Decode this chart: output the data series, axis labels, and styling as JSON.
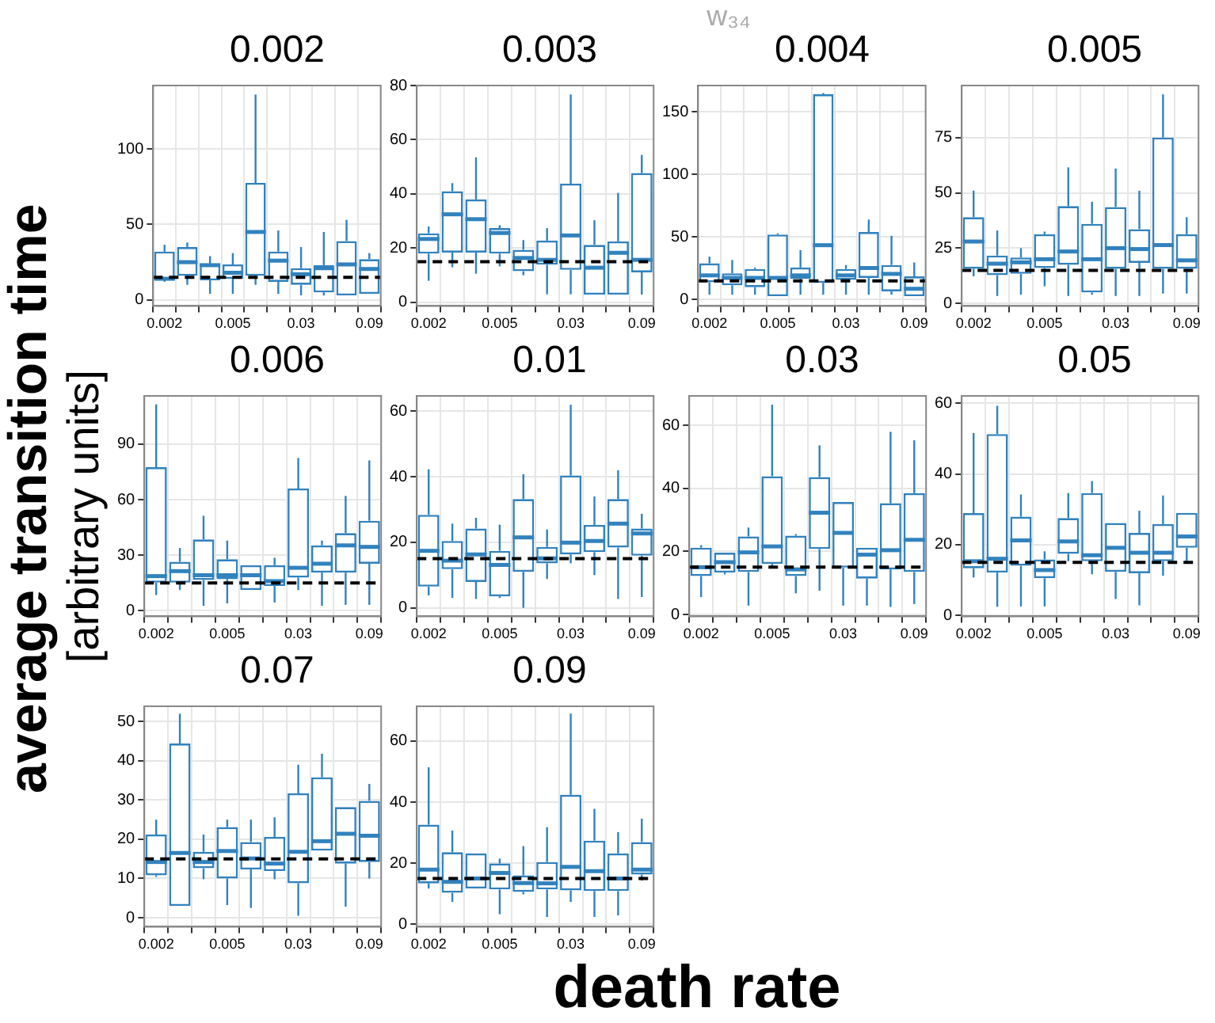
{
  "chart_data": [
    {
      "type": "box",
      "title": "0.002",
      "xlabel": "death rate",
      "ylabel": "average transition time\n[arbitrary units]",
      "annotations": [
        "w₃₄"
      ],
      "categories": [
        "0.002",
        null,
        null,
        "0.005",
        null,
        null,
        "0.03",
        null,
        null,
        "0.09"
      ],
      "color": "#3182bd",
      "ylim": [
        -4,
        142
      ],
      "yticks": [
        0,
        50,
        100
      ],
      "grid": true,
      "ref_lines": [
        {
          "axis": "y",
          "value": 15,
          "color": "#000000",
          "line_style": "dashed"
        }
      ],
      "boxes": [
        {
          "low": 12,
          "q1": 13,
          "median": 14,
          "q3": 32,
          "high": 36.5
        },
        {
          "low": 10,
          "q1": 16,
          "median": 25,
          "q3": 35,
          "high": 38
        },
        {
          "low": 4,
          "q1": 13,
          "median": 23,
          "q3": 24,
          "high": 29
        },
        {
          "low": 4,
          "q1": 14,
          "median": 18,
          "q3": 23.5,
          "high": 31
        },
        {
          "low": 10,
          "q1": 16,
          "median": 45,
          "q3": 77.5,
          "high": 136
        },
        {
          "low": 4,
          "q1": 12,
          "median": 26,
          "q3": 32,
          "high": 46
        },
        {
          "low": 3,
          "q1": 10,
          "median": 17,
          "q3": 21,
          "high": 35
        },
        {
          "low": 3,
          "q1": 5,
          "median": 21,
          "q3": 23,
          "high": 45
        },
        {
          "low": 3,
          "q1": 3,
          "median": 23.5,
          "q3": 39,
          "high": 53
        },
        {
          "low": 4,
          "q1": 4,
          "median": 20.5,
          "q3": 27,
          "high": 31
        }
      ]
    },
    {
      "type": "box",
      "title": "0.003",
      "categories": [
        "0.002",
        null,
        null,
        "0.005",
        null,
        null,
        "0.03",
        null,
        null,
        "0.09"
      ],
      "color": "#3182bd",
      "ylim": [
        -1.3,
        80
      ],
      "yticks": [
        0,
        20,
        40,
        60,
        80
      ],
      "grid": true,
      "ref_lines": [
        {
          "axis": "y",
          "value": 15,
          "color": "#000000",
          "line_style": "dashed"
        }
      ],
      "boxes": [
        {
          "low": 8,
          "q1": 18,
          "median": 23.4,
          "q3": 25.5,
          "high": 28
        },
        {
          "low": 13,
          "q1": 18.4,
          "median": 32.5,
          "q3": 41,
          "high": 44
        },
        {
          "low": 10.6,
          "q1": 18.4,
          "median": 30.7,
          "q3": 38,
          "high": 53.5
        },
        {
          "low": 13.3,
          "q1": 18,
          "median": 25.6,
          "q3": 27.4,
          "high": 28.5
        },
        {
          "low": 10,
          "q1": 11.5,
          "median": 16.4,
          "q3": 19.4,
          "high": 23
        },
        {
          "low": 3,
          "q1": 13.9,
          "median": 15.7,
          "q3": 22.8,
          "high": 27.4
        },
        {
          "low": 3,
          "q1": 12,
          "median": 24.7,
          "q3": 43.8,
          "high": 76.7
        },
        {
          "low": 2.9,
          "q1": 2.9,
          "median": 12.8,
          "q3": 21.2,
          "high": 30.3
        },
        {
          "low": 2.9,
          "q1": 2.9,
          "median": 18.3,
          "q3": 22.5,
          "high": 40.4
        },
        {
          "low": 2.9,
          "q1": 11.1,
          "median": 15.7,
          "q3": 47.7,
          "high": 54.4
        }
      ]
    },
    {
      "type": "box",
      "title": "0.004",
      "categories": [
        "0.002",
        null,
        null,
        "0.005",
        null,
        null,
        "0.03",
        null,
        null,
        "0.09"
      ],
      "color": "#3182bd",
      "ylim": [
        -5,
        171
      ],
      "yticks": [
        0,
        50,
        100,
        150
      ],
      "grid": true,
      "ref_lines": [
        {
          "axis": "y",
          "value": 15,
          "color": "#000000",
          "line_style": "dashed"
        }
      ],
      "boxes": [
        {
          "low": 4,
          "q1": 13.9,
          "median": 19.4,
          "q3": 29,
          "high": 34.4
        },
        {
          "low": 4,
          "q1": 11.5,
          "median": 17.4,
          "q3": 21,
          "high": 31.7
        },
        {
          "low": 4,
          "q1": 10,
          "median": 17.4,
          "q3": 24.5,
          "high": 25.7
        },
        {
          "low": 2.8,
          "q1": 2.8,
          "median": 17.4,
          "q3": 52,
          "high": 53
        },
        {
          "low": 4,
          "q1": 16.6,
          "median": 19.4,
          "q3": 25.7,
          "high": 39.6
        },
        {
          "low": 4,
          "q1": 13.5,
          "median": 43.5,
          "q3": 164,
          "high": 165
        },
        {
          "low": 4,
          "q1": 15.8,
          "median": 19.4,
          "q3": 24.5,
          "high": 27.7
        },
        {
          "low": 4,
          "q1": 17.4,
          "median": 25.3,
          "q3": 54,
          "high": 64
        },
        {
          "low": 4,
          "q1": 6.7,
          "median": 20.6,
          "q3": 27.7,
          "high": 51
        },
        {
          "low": 2.8,
          "q1": 2.8,
          "median": 8.7,
          "q3": 18.6,
          "high": 29.7
        }
      ]
    },
    {
      "type": "box",
      "title": "0.005",
      "categories": [
        "0.002",
        null,
        null,
        "0.005",
        null,
        null,
        "0.03",
        null,
        null,
        "0.09"
      ],
      "color": "#3182bd",
      "ylim": [
        -1.1,
        98.5
      ],
      "yticks": [
        0,
        25,
        50,
        75
      ],
      "grid": true,
      "ref_lines": [
        {
          "axis": "y",
          "value": 15,
          "color": "#000000",
          "line_style": "dashed"
        }
      ],
      "boxes": [
        {
          "low": 12.3,
          "q1": 15.7,
          "median": 28,
          "q3": 39,
          "high": 51
        },
        {
          "low": 3.4,
          "q1": 12.8,
          "median": 18,
          "q3": 21.7,
          "high": 33
        },
        {
          "low": 4,
          "q1": 13.4,
          "median": 18.6,
          "q3": 20.8,
          "high": 25
        },
        {
          "low": 7.8,
          "q1": 16,
          "median": 20,
          "q3": 31.3,
          "high": 32.5
        },
        {
          "low": 3.4,
          "q1": 17.5,
          "median": 23.5,
          "q3": 44,
          "high": 61.5
        },
        {
          "low": 4,
          "q1": 5,
          "median": 20,
          "q3": 36,
          "high": 46
        },
        {
          "low": 3.4,
          "q1": 15.7,
          "median": 25,
          "q3": 43.6,
          "high": 61
        },
        {
          "low": 3.4,
          "q1": 18.4,
          "median": 24.6,
          "q3": 33.6,
          "high": 51
        },
        {
          "low": 4.5,
          "q1": 15.7,
          "median": 26.4,
          "q3": 75,
          "high": 94.5
        },
        {
          "low": 4.5,
          "q1": 15.7,
          "median": 19.5,
          "q3": 31.3,
          "high": 39
        }
      ]
    },
    {
      "type": "box",
      "title": "0.006",
      "categories": [
        "0.002",
        null,
        null,
        "0.005",
        null,
        null,
        "0.03",
        null,
        null,
        "0.09"
      ],
      "color": "#3182bd",
      "ylim": [
        -3,
        116
      ],
      "yticks": [
        0,
        30,
        60,
        90
      ],
      "grid": true,
      "ref_lines": [
        {
          "axis": "y",
          "value": 15,
          "color": "#000000",
          "line_style": "dashed"
        }
      ],
      "boxes": [
        {
          "low": 8.5,
          "q1": 15.2,
          "median": 18.7,
          "q3": 77.5,
          "high": 111.4
        },
        {
          "low": 11.2,
          "q1": 15.2,
          "median": 21.4,
          "q3": 26.4,
          "high": 33.9
        },
        {
          "low": 2.7,
          "q1": 16.6,
          "median": 19.2,
          "q3": 38.5,
          "high": 51.3
        },
        {
          "low": 4,
          "q1": 17.1,
          "median": 19.2,
          "q3": 27.8,
          "high": 37.9
        },
        {
          "low": 11.2,
          "q1": 11.2,
          "median": 19.2,
          "q3": 24.6,
          "high": 24.6
        },
        {
          "low": 4.5,
          "q1": 13.4,
          "median": 16,
          "q3": 24.6,
          "high": 28.6
        },
        {
          "low": 11.2,
          "q1": 17.9,
          "median": 23.2,
          "q3": 66,
          "high": 82.5
        },
        {
          "low": 2.7,
          "q1": 20.6,
          "median": 25.4,
          "q3": 35.3,
          "high": 37.9
        },
        {
          "low": 3.2,
          "q1": 20.6,
          "median": 35.3,
          "q3": 41.9,
          "high": 62
        },
        {
          "low": 3.2,
          "q1": 25.4,
          "median": 34.5,
          "q3": 48.6,
          "high": 81.2
        }
      ]
    },
    {
      "type": "box",
      "title": "0.01",
      "categories": [
        "0.002",
        null,
        null,
        "0.005",
        null,
        null,
        "0.03",
        null,
        null,
        "0.09"
      ],
      "color": "#3182bd",
      "ylim": [
        -2.6,
        64.7
      ],
      "yticks": [
        0,
        20,
        40,
        60
      ],
      "grid": true,
      "ref_lines": [
        {
          "axis": "y",
          "value": 15,
          "color": "#000000",
          "line_style": "dashed"
        }
      ],
      "boxes": [
        {
          "low": 3.8,
          "q1": 6.5,
          "median": 17.4,
          "q3": 28.4,
          "high": 42.3
        },
        {
          "low": 3,
          "q1": 11.8,
          "median": 14.4,
          "q3": 20.4,
          "high": 25.7
        },
        {
          "low": 2.7,
          "q1": 7.9,
          "median": 16.3,
          "q3": 24.2,
          "high": 27.5
        },
        {
          "low": 3,
          "q1": 3.5,
          "median": 13.1,
          "q3": 17.4,
          "high": 25.4
        },
        {
          "low": 0,
          "q1": 11,
          "median": 21.5,
          "q3": 33.2,
          "high": 40.8
        },
        {
          "low": 8.8,
          "q1": 13.6,
          "median": 15.1,
          "q3": 18.6,
          "high": 23.9
        },
        {
          "low": 13.6,
          "q1": 16.3,
          "median": 19.9,
          "q3": 40.4,
          "high": 62
        },
        {
          "low": 10,
          "q1": 17,
          "median": 20.4,
          "q3": 25.3,
          "high": 34
        },
        {
          "low": 2.7,
          "q1": 18.4,
          "median": 25.7,
          "q3": 33.2,
          "high": 42
        },
        {
          "low": 3.3,
          "q1": 15.9,
          "median": 22.7,
          "q3": 24.2,
          "high": 28.7
        }
      ]
    },
    {
      "type": "box",
      "title": "0.03",
      "categories": [
        "0.002",
        null,
        null,
        "0.005",
        null,
        null,
        "0.03",
        null,
        null,
        "0.09"
      ],
      "color": "#3182bd",
      "ylim": [
        -0.6,
        69.4
      ],
      "yticks": [
        0,
        20,
        40,
        60
      ],
      "grid": true,
      "ref_lines": [
        {
          "axis": "y",
          "value": 15,
          "color": "#000000",
          "line_style": "dashed"
        }
      ],
      "boxes": [
        {
          "low": 5.5,
          "q1": 12.2,
          "median": 15,
          "q3": 21.2,
          "high": 22
        },
        {
          "low": 12.7,
          "q1": 13.3,
          "median": 16.6,
          "q3": 19.6,
          "high": 19.6
        },
        {
          "low": 2.8,
          "q1": 13.5,
          "median": 19.7,
          "q3": 24.8,
          "high": 27.6
        },
        {
          "low": 14.6,
          "q1": 16.1,
          "median": 21.6,
          "q3": 43.9,
          "high": 66.6
        },
        {
          "low": 6.7,
          "q1": 12.2,
          "median": 14.3,
          "q3": 25,
          "high": 25.5
        },
        {
          "low": 7.5,
          "q1": 20.8,
          "median": 32.3,
          "q3": 43.6,
          "high": 53.7
        },
        {
          "low": 2.8,
          "q1": 14.9,
          "median": 25.9,
          "q3": 35.7,
          "high": 35.7
        },
        {
          "low": 2.8,
          "q1": 11.4,
          "median": 19,
          "q3": 21.2,
          "high": 21.2
        },
        {
          "low": 2.4,
          "q1": 14.3,
          "median": 20.4,
          "q3": 35.3,
          "high": 58
        },
        {
          "low": 3.3,
          "q1": 13.5,
          "median": 23.7,
          "q3": 38.5,
          "high": 55.3
        }
      ]
    },
    {
      "type": "box",
      "title": "0.05",
      "categories": [
        "0.002",
        null,
        null,
        "0.005",
        null,
        null,
        "0.03",
        null,
        null,
        "0.09"
      ],
      "color": "#3182bd",
      "ylim": [
        -0.3,
        62.1
      ],
      "yticks": [
        0,
        20,
        40,
        60
      ],
      "grid": true,
      "ref_lines": [
        {
          "axis": "y",
          "value": 15,
          "color": "#000000",
          "line_style": "dashed"
        }
      ],
      "boxes": [
        {
          "low": 10.7,
          "q1": 13.3,
          "median": 15.3,
          "q3": 28.9,
          "high": 51.6
        },
        {
          "low": 2.4,
          "q1": 12.1,
          "median": 16,
          "q3": 51.3,
          "high": 59.3
        },
        {
          "low": 2.5,
          "q1": 14,
          "median": 21.2,
          "q3": 27.9,
          "high": 34.2
        },
        {
          "low": 2.5,
          "q1": 10.5,
          "median": 12.8,
          "q3": 15.8,
          "high": 18.1
        },
        {
          "low": 15.3,
          "q1": 17.4,
          "median": 20.9,
          "q3": 27.5,
          "high": 34.6
        },
        {
          "low": 11.6,
          "q1": 15.3,
          "median": 17,
          "q3": 34.6,
          "high": 38
        },
        {
          "low": 4.6,
          "q1": 12.3,
          "median": 19.1,
          "q3": 26.1,
          "high": 26.1
        },
        {
          "low": 2.8,
          "q1": 11.9,
          "median": 17.7,
          "q3": 23.3,
          "high": 29.6
        },
        {
          "low": 11.2,
          "q1": 15.3,
          "median": 17.7,
          "q3": 25.8,
          "high": 33.9
        },
        {
          "low": 14.7,
          "q1": 19.1,
          "median": 22.3,
          "q3": 29,
          "high": 29
        }
      ]
    },
    {
      "type": "box",
      "title": "0.07",
      "categories": [
        "0.002",
        null,
        null,
        "0.005",
        null,
        null,
        "0.03",
        null,
        null,
        "0.09"
      ],
      "color": "#3182bd",
      "ylim": [
        -2.3,
        53.9
      ],
      "yticks": [
        0,
        10,
        20,
        30,
        40,
        50
      ],
      "grid": true,
      "ref_lines": [
        {
          "axis": "y",
          "value": 15,
          "color": "#000000",
          "line_style": "dashed"
        }
      ],
      "boxes": [
        {
          "low": 10.4,
          "q1": 10.8,
          "median": 14.2,
          "q3": 21.2,
          "high": 25
        },
        {
          "low": 3,
          "q1": 3,
          "median": 16.5,
          "q3": 44.4,
          "high": 52
        },
        {
          "low": 9.8,
          "q1": 12.6,
          "median": 14.2,
          "q3": 16.8,
          "high": 21.2
        },
        {
          "low": 3.2,
          "q1": 10,
          "median": 17,
          "q3": 23.1,
          "high": 25
        },
        {
          "low": 2.5,
          "q1": 12.3,
          "median": 15.1,
          "q3": 19.3,
          "high": 25
        },
        {
          "low": 9.8,
          "q1": 11.9,
          "median": 13.8,
          "q3": 20.6,
          "high": 25.6
        },
        {
          "low": 0.5,
          "q1": 8.8,
          "median": 16.8,
          "q3": 31.7,
          "high": 39
        },
        {
          "low": 17.1,
          "q1": 17.1,
          "median": 19.5,
          "q3": 35.8,
          "high": 41.8
        },
        {
          "low": 2.8,
          "q1": 13.8,
          "median": 21.4,
          "q3": 28.2,
          "high": 28.2
        },
        {
          "low": 10,
          "q1": 14.2,
          "median": 20.9,
          "q3": 29.8,
          "high": 34.1
        }
      ]
    },
    {
      "type": "box",
      "title": "0.09",
      "categories": [
        "0.002",
        null,
        null,
        "0.005",
        null,
        null,
        "0.03",
        null,
        null,
        "0.09"
      ],
      "color": "#3182bd",
      "ylim": [
        -0.8,
        71.4
      ],
      "yticks": [
        0,
        20,
        40,
        60
      ],
      "grid": true,
      "ref_lines": [
        {
          "axis": "y",
          "value": 15,
          "color": "#000000",
          "line_style": "dashed"
        }
      ],
      "boxes": [
        {
          "low": 11.7,
          "q1": 13.4,
          "median": 17.9,
          "q3": 32.6,
          "high": 51.4
        },
        {
          "low": 7.3,
          "q1": 10.3,
          "median": 13.9,
          "q3": 23.6,
          "high": 30.7
        },
        {
          "low": 11.7,
          "q1": 11.7,
          "median": 15,
          "q3": 23.2,
          "high": 23.2
        },
        {
          "low": 3.3,
          "q1": 11.4,
          "median": 16.8,
          "q3": 19.9,
          "high": 21.5
        },
        {
          "low": 9.8,
          "q1": 10.6,
          "median": 13.5,
          "q3": 16,
          "high": 25.6
        },
        {
          "low": 2.4,
          "q1": 11.4,
          "median": 13.4,
          "q3": 20.4,
          "high": 31.8
        },
        {
          "low": 7.3,
          "q1": 11.1,
          "median": 18.8,
          "q3": 42.4,
          "high": 69
        },
        {
          "low": 2.4,
          "q1": 10.9,
          "median": 17.4,
          "q3": 27.4,
          "high": 37.8
        },
        {
          "low": 2.9,
          "q1": 10.9,
          "median": 15,
          "q3": 23.2,
          "high": 30.2
        },
        {
          "low": 14.3,
          "q1": 16.3,
          "median": 17.9,
          "q3": 26.9,
          "high": 34.6
        }
      ]
    }
  ]
}
